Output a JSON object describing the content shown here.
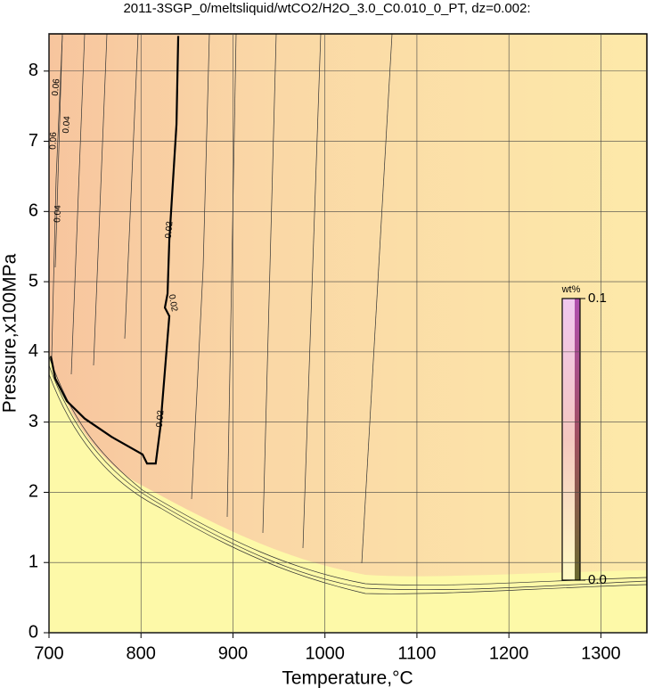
{
  "chart_data": {
    "type": "contour",
    "title": "2011-3SGP_0/meltsliquid/wtCO2/H2O_3.0_C0.010_0_PT, dz=0.002:",
    "x_label": "Temperature,°C",
    "y_label": "Pressure,x100MPa",
    "xlim": [
      700,
      1350
    ],
    "ylim": [
      0,
      8.53
    ],
    "xticks": [
      700,
      800,
      900,
      1000,
      1100,
      1200,
      1300
    ],
    "yticks": [
      0,
      1,
      2,
      3,
      4,
      5,
      6,
      7,
      8
    ],
    "grid": true,
    "contour_levels": [
      0.02,
      0.04,
      0.06
    ],
    "lines": [
      {
        "color": "#000000",
        "x": [
          840.5,
          838.6,
          830.8,
          828.9,
          826,
          830.8,
          821,
          816,
          806.6,
          801.7,
          768,
          738.8,
          719.4,
          706.8,
          702
        ],
        "y": [
          8.5,
          7.24,
          5.59,
          4.83,
          4.63,
          4.51,
          2.92,
          2.41,
          2.41,
          2.54,
          2.79,
          3.05,
          3.3,
          3.62,
          3.94
        ]
      }
    ],
    "colorbar": {
      "label": "wt%",
      "lim": [
        0,
        0.1
      ],
      "ticks": [
        {
          "value": 0,
          "label": "0.0"
        },
        0.1
      ]
    }
  }
}
